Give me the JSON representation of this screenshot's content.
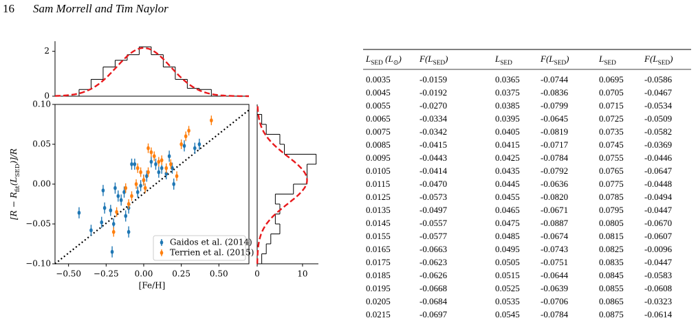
{
  "header": {
    "page": "16",
    "authors": "Sam Morrell and Tim Naylor"
  },
  "chart_data": [
    {
      "type": "scatter",
      "xlabel": "[Fe/H]",
      "ylabel": [
        {
          "text": "[R − R"
        },
        {
          "sub": "fit"
        },
        {
          "text": "(L"
        },
        {
          "sub": "SED"
        },
        {
          "text": ")]/R"
        }
      ],
      "xlim": [
        -0.59,
        0.7
      ],
      "ylim": [
        -0.1,
        0.1
      ],
      "xticks": [
        {
          "value": -0.5,
          "label": "−0.50"
        },
        {
          "value": -0.25,
          "label": "−0.25"
        },
        {
          "value": 0,
          "label": "0.00"
        },
        {
          "value": 0.25,
          "label": "0.25"
        },
        {
          "value": 0.5,
          "label": "0.50"
        }
      ],
      "yticks": [
        {
          "value": -0.1,
          "label": "−0.10"
        },
        {
          "value": -0.05,
          "label": "−0.05"
        },
        {
          "value": 0,
          "label": "0.00"
        },
        {
          "value": 0.05,
          "label": "0.05"
        },
        {
          "value": 0.1,
          "label": "0.10"
        }
      ],
      "legend": "lower right",
      "series": [
        {
          "name": "Gaidos et al. (2014)",
          "color": "#1f77b4",
          "yerr": 0.007,
          "x": [
            -0.43,
            -0.35,
            -0.28,
            -0.27,
            -0.26,
            -0.22,
            -0.21,
            -0.2,
            -0.19,
            -0.17,
            -0.15,
            -0.13,
            -0.12,
            -0.1,
            -0.1,
            -0.08,
            -0.06,
            -0.04,
            -0.02,
            0.0,
            0.02,
            0.05,
            0.08,
            0.1,
            0.12,
            0.15,
            0.17,
            0.19,
            0.2,
            0.27,
            0.34,
            0.37
          ],
          "values": [
            -0.036,
            -0.058,
            -0.048,
            -0.008,
            -0.03,
            -0.033,
            -0.085,
            -0.05,
            -0.005,
            -0.015,
            -0.02,
            -0.01,
            -0.04,
            -0.06,
            -0.03,
            0.025,
            0.025,
            -0.01,
            -0.002,
            0.005,
            0.01,
            0.028,
            0.025,
            0.015,
            0.02,
            0.013,
            0.035,
            0.02,
            0.0,
            0.048,
            0.045,
            0.05
          ]
        },
        {
          "name": "Terrien et al. (2015)",
          "color": "#ff7f0e",
          "yerr": 0.006,
          "x": [
            -0.2,
            -0.18,
            -0.12,
            -0.1,
            -0.08,
            -0.05,
            -0.04,
            -0.02,
            0.0,
            0.01,
            0.03,
            0.03,
            0.05,
            0.07,
            0.1,
            0.12,
            0.15,
            0.18,
            0.22,
            0.25,
            0.28,
            0.3,
            0.45
          ],
          "values": [
            -0.06,
            -0.035,
            -0.005,
            -0.025,
            -0.015,
            0.0,
            0.02,
            0.015,
            0.005,
            -0.005,
            0.015,
            0.045,
            0.04,
            0.035,
            0.028,
            0.03,
            0.02,
            0.025,
            0.01,
            0.05,
            0.06,
            0.067,
            0.08
          ]
        }
      ],
      "line": {
        "color": "#000000",
        "x": [
          -0.59,
          0.7
        ],
        "values": [
          -0.1,
          0.093
        ]
      }
    },
    {
      "type": "histogram",
      "orientation": "vertical",
      "xlim": [
        -0.59,
        0.7
      ],
      "ylim": [
        0,
        2.45
      ],
      "yticks": [
        0,
        2
      ],
      "color": "#000000",
      "bins": [
        -0.43,
        -0.35,
        -0.27,
        -0.19,
        -0.11,
        -0.03,
        0.05,
        0.13,
        0.21,
        0.29,
        0.37,
        0.45
      ],
      "values": [
        0.3,
        0.75,
        1.3,
        1.6,
        1.85,
        2.2,
        1.85,
        1.3,
        0.75,
        0.35,
        0.3
      ],
      "fit": {
        "color": "#e8191c",
        "mean": 0.0,
        "sigma": 0.18,
        "amplitude": 2.15
      }
    },
    {
      "type": "histogram",
      "orientation": "horizontal",
      "ylim": [
        -0.1,
        0.1
      ],
      "xlim": [
        0,
        13.5
      ],
      "xticks": [
        0,
        10
      ],
      "color": "#000000",
      "bins": [
        -0.1,
        -0.0875,
        -0.075,
        -0.0625,
        -0.05,
        -0.0375,
        -0.025,
        -0.0125,
        0,
        0.0125,
        0.025,
        0.0375,
        0.05,
        0.0625,
        0.075,
        0.0875
      ],
      "values": [
        1,
        2,
        3,
        5,
        4,
        5,
        4,
        8,
        11,
        11,
        13,
        6,
        5,
        2,
        1
      ],
      "fit": {
        "color": "#e8191c",
        "mean": 0.005,
        "sigma": 0.03,
        "amplitude": 11
      }
    }
  ],
  "table": {
    "columns": [
      [
        {
          "text": "L"
        },
        {
          "sub": "SED"
        },
        {
          "text": " (L"
        },
        {
          "sub": "⊙"
        },
        {
          "text": ")"
        }
      ],
      [
        {
          "text": "F(L"
        },
        {
          "sub": "SED"
        },
        {
          "text": ")"
        }
      ],
      [
        {
          "text": "L"
        },
        {
          "sub": "SED"
        }
      ],
      [
        {
          "text": "F(L"
        },
        {
          "sub": "SED"
        },
        {
          "text": ")"
        }
      ],
      [
        {
          "text": "L"
        },
        {
          "sub": "SED"
        }
      ],
      [
        {
          "text": "F(L"
        },
        {
          "sub": "SED"
        },
        {
          "text": ")"
        }
      ]
    ],
    "rows": [
      [
        "0.0035",
        "-0.0159",
        "0.0365",
        "-0.0744",
        "0.0695",
        "-0.0586"
      ],
      [
        "0.0045",
        "-0.0192",
        "0.0375",
        "-0.0836",
        "0.0705",
        "-0.0467"
      ],
      [
        "0.0055",
        "-0.0270",
        "0.0385",
        "-0.0799",
        "0.0715",
        "-0.0534"
      ],
      [
        "0.0065",
        "-0.0334",
        "0.0395",
        "-0.0645",
        "0.0725",
        "-0.0509"
      ],
      [
        "0.0075",
        "-0.0342",
        "0.0405",
        "-0.0819",
        "0.0735",
        "-0.0582"
      ],
      [
        "0.0085",
        "-0.0415",
        "0.0415",
        "-0.0717",
        "0.0745",
        "-0.0369"
      ],
      [
        "0.0095",
        "-0.0443",
        "0.0425",
        "-0.0784",
        "0.0755",
        "-0.0446"
      ],
      [
        "0.0105",
        "-0.0414",
        "0.0435",
        "-0.0792",
        "0.0765",
        "-0.0647"
      ],
      [
        "0.0115",
        "-0.0470",
        "0.0445",
        "-0.0636",
        "0.0775",
        "-0.0448"
      ],
      [
        "0.0125",
        "-0.0573",
        "0.0455",
        "-0.0820",
        "0.0785",
        "-0.0494"
      ],
      [
        "0.0135",
        "-0.0497",
        "0.0465",
        "-0.0671",
        "0.0795",
        "-0.0447"
      ],
      [
        "0.0145",
        "-0.0557",
        "0.0475",
        "-0.0887",
        "0.0805",
        "-0.0670"
      ],
      [
        "0.0155",
        "-0.0577",
        "0.0485",
        "-0.0674",
        "0.0815",
        "-0.0607"
      ],
      [
        "0.0165",
        "-0.0663",
        "0.0495",
        "-0.0743",
        "0.0825",
        "-0.0096"
      ],
      [
        "0.0175",
        "-0.0623",
        "0.0505",
        "-0.0751",
        "0.0835",
        "-0.0447"
      ],
      [
        "0.0185",
        "-0.0626",
        "0.0515",
        "-0.0644",
        "0.0845",
        "-0.0583"
      ],
      [
        "0.0195",
        "-0.0668",
        "0.0525",
        "-0.0639",
        "0.0855",
        "-0.0608"
      ],
      [
        "0.0205",
        "-0.0684",
        "0.0535",
        "-0.0706",
        "0.0865",
        "-0.0323"
      ],
      [
        "0.0215",
        "-0.0697",
        "0.0545",
        "-0.0784",
        "0.0875",
        "-0.0614"
      ]
    ]
  }
}
